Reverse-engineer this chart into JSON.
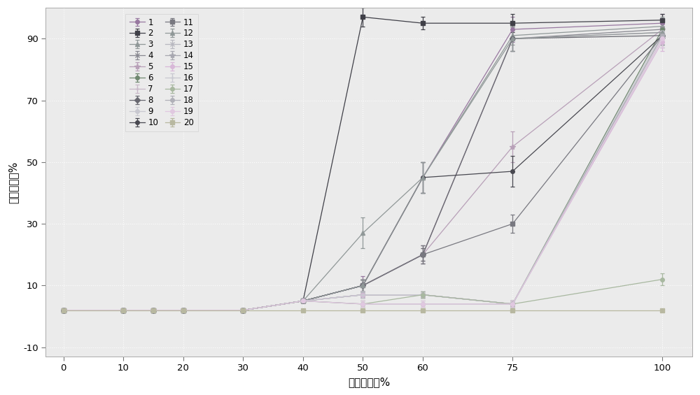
{
  "xlabel": "甲醇的浓度%",
  "ylabel": "累积回收率%",
  "xlim": [
    -3,
    105
  ],
  "ylim": [
    -13,
    100
  ],
  "xticks": [
    0,
    10,
    20,
    30,
    40,
    50,
    60,
    75,
    100
  ],
  "yticks": [
    -10,
    10,
    30,
    50,
    70,
    90
  ],
  "x_points": [
    0,
    10,
    15,
    20,
    30,
    40,
    50,
    60,
    75,
    100
  ],
  "bg_color": "#f0eff0",
  "series_data": {
    "1": {
      "y": [
        2,
        2,
        2,
        2,
        2,
        5,
        10,
        45,
        93,
        95
      ],
      "yerr": [
        0,
        0,
        0,
        0,
        0,
        0.5,
        3,
        5,
        4,
        3
      ],
      "color": "#9878a0",
      "marker": "o"
    },
    "2": {
      "y": [
        2,
        2,
        2,
        2,
        2,
        5,
        97,
        95,
        95,
        96
      ],
      "yerr": [
        0,
        0,
        0,
        0,
        0,
        0.5,
        3,
        2,
        3,
        2
      ],
      "color": "#404048",
      "marker": "s"
    },
    "3": {
      "y": [
        2,
        2,
        2,
        2,
        2,
        5,
        27,
        45,
        91,
        94
      ],
      "yerr": [
        0,
        0,
        0,
        0,
        0,
        0.5,
        5,
        5,
        3,
        3
      ],
      "color": "#909898",
      "marker": "^"
    },
    "4": {
      "y": [
        2,
        2,
        2,
        2,
        2,
        5,
        10,
        20,
        90,
        93
      ],
      "yerr": [
        0,
        0,
        0,
        0,
        0,
        0.5,
        2,
        3,
        4,
        3
      ],
      "color": "#888890",
      "marker": "x"
    },
    "5": {
      "y": [
        2,
        2,
        2,
        2,
        2,
        5,
        10,
        20,
        55,
        93
      ],
      "yerr": [
        0,
        0,
        0,
        0,
        0,
        0.5,
        2,
        3,
        5,
        3
      ],
      "color": "#b8a0b8",
      "marker": "*"
    },
    "6": {
      "y": [
        2,
        2,
        2,
        2,
        2,
        5,
        7,
        7,
        4,
        93
      ],
      "yerr": [
        0,
        0,
        0,
        0,
        0,
        0.5,
        1,
        1,
        1,
        3
      ],
      "color": "#708870",
      "marker": "o"
    },
    "7": {
      "y": [
        2,
        2,
        2,
        2,
        2,
        5,
        10,
        20,
        90,
        92
      ],
      "yerr": [
        0,
        0,
        0,
        0,
        0,
        0.5,
        2,
        2,
        4,
        3
      ],
      "color": "#c8b8c8",
      "marker": "+"
    },
    "8": {
      "y": [
        2,
        2,
        2,
        2,
        2,
        5,
        10,
        20,
        90,
        91
      ],
      "yerr": [
        0,
        0,
        0,
        0,
        0,
        0.5,
        2,
        2,
        4,
        3
      ],
      "color": "#686870",
      "marker": "D"
    },
    "9": {
      "y": [
        2,
        2,
        2,
        2,
        2,
        5,
        7,
        7,
        4,
        92
      ],
      "yerr": [
        0,
        0,
        0,
        0,
        0,
        0.5,
        1,
        1,
        1,
        3
      ],
      "color": "#c8c8d0",
      "marker": "o"
    },
    "10": {
      "y": [
        2,
        2,
        2,
        2,
        2,
        5,
        10,
        45,
        47,
        91
      ],
      "yerr": [
        0,
        0,
        0,
        0,
        0,
        0.5,
        2,
        5,
        5,
        3
      ],
      "color": "#484850",
      "marker": "o"
    },
    "11": {
      "y": [
        2,
        2,
        2,
        2,
        2,
        5,
        10,
        20,
        30,
        91
      ],
      "yerr": [
        0,
        0,
        0,
        0,
        0,
        0.5,
        2,
        3,
        3,
        3
      ],
      "color": "#787880",
      "marker": "s"
    },
    "12": {
      "y": [
        2,
        2,
        2,
        2,
        2,
        5,
        10,
        45,
        90,
        92
      ],
      "yerr": [
        0,
        0,
        0,
        0,
        0,
        0.5,
        2,
        5,
        4,
        3
      ],
      "color": "#909898",
      "marker": "^"
    },
    "13": {
      "y": [
        2,
        2,
        2,
        2,
        2,
        5,
        7,
        7,
        4,
        91
      ],
      "yerr": [
        0,
        0,
        0,
        0,
        0,
        0.5,
        1,
        1,
        1,
        3
      ],
      "color": "#b8b8c0",
      "marker": "x"
    },
    "14": {
      "y": [
        2,
        2,
        2,
        2,
        2,
        5,
        7,
        7,
        4,
        90
      ],
      "yerr": [
        0,
        0,
        0,
        0,
        0,
        0.5,
        1,
        1,
        1,
        3
      ],
      "color": "#a8a8b0",
      "marker": "*"
    },
    "15": {
      "y": [
        2,
        2,
        2,
        2,
        2,
        5,
        7,
        7,
        4,
        89
      ],
      "yerr": [
        0,
        0,
        0,
        0,
        0,
        0.5,
        1,
        1,
        1,
        3
      ],
      "color": "#d8b8d8",
      "marker": "o"
    },
    "16": {
      "y": [
        2,
        2,
        2,
        2,
        2,
        5,
        7,
        7,
        4,
        90
      ],
      "yerr": [
        0,
        0,
        0,
        0,
        0,
        0.5,
        1,
        1,
        1,
        3
      ],
      "color": "#c8c8d0",
      "marker": "+"
    },
    "17": {
      "y": [
        2,
        2,
        2,
        2,
        2,
        5,
        4,
        7,
        4,
        12
      ],
      "yerr": [
        0,
        0,
        0,
        0,
        0,
        0.5,
        1,
        1,
        1,
        2
      ],
      "color": "#a8b8a0",
      "marker": "o"
    },
    "18": {
      "y": [
        2,
        2,
        2,
        2,
        2,
        5,
        4,
        4,
        4,
        91
      ],
      "yerr": [
        0,
        0,
        0,
        0,
        0,
        0.5,
        1,
        1,
        1,
        3
      ],
      "color": "#b0b0b8",
      "marker": "o"
    },
    "19": {
      "y": [
        2,
        2,
        2,
        2,
        2,
        5,
        4,
        4,
        4,
        90
      ],
      "yerr": [
        0,
        0,
        0,
        0,
        0,
        0.5,
        1,
        1,
        1,
        3
      ],
      "color": "#e0c8e0",
      "marker": "o"
    },
    "20": {
      "y": [
        2,
        2,
        2,
        2,
        2,
        2,
        2,
        2,
        2,
        2
      ],
      "yerr": [
        0,
        0,
        0,
        0,
        0,
        0,
        0,
        0,
        0,
        0
      ],
      "color": "#b8b8a0",
      "marker": "s"
    }
  }
}
